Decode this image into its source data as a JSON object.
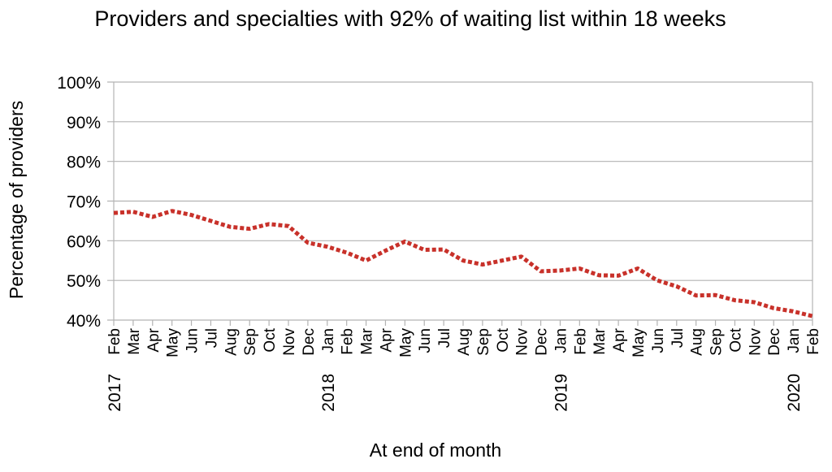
{
  "chart_data": {
    "type": "line",
    "title": "Providers and specialties with 92% of waiting list within 18 weeks",
    "xlabel": "At end of month",
    "ylabel": "Percentage  of  providers",
    "ylim": [
      40,
      100
    ],
    "y_ticks": [
      "40%",
      "50%",
      "60%",
      "70%",
      "80%",
      "90%",
      "100%"
    ],
    "y_tick_values": [
      40,
      50,
      60,
      70,
      80,
      90,
      100
    ],
    "grid": true,
    "legend": "none",
    "categories": [
      "Feb",
      "Mar",
      "Apr",
      "May",
      "Jun",
      "Jul",
      "Aug",
      "Sep",
      "Oct",
      "Nov",
      "Dec",
      "Jan",
      "Feb",
      "Mar",
      "Apr",
      "May",
      "Jun",
      "Jul",
      "Aug",
      "Sep",
      "Oct",
      "Nov",
      "Dec",
      "Jan",
      "Feb",
      "Mar",
      "Apr",
      "May",
      "Jun",
      "Jul",
      "Aug",
      "Sep",
      "Oct",
      "Nov",
      "Dec",
      "Jan",
      "Feb"
    ],
    "year_labels": [
      {
        "index": 0,
        "label": "2017"
      },
      {
        "index": 11,
        "label": "2018"
      },
      {
        "index": 23,
        "label": "2019"
      },
      {
        "index": 35,
        "label": "2020"
      }
    ],
    "series": [
      {
        "color": "#c8312a",
        "line_style": "dotted",
        "values": [
          67,
          67.3,
          66,
          67.5,
          66.5,
          65,
          63.5,
          63,
          64.2,
          63.7,
          59.5,
          58.5,
          57,
          55,
          57.5,
          59.8,
          57.7,
          57.8,
          55,
          54,
          55,
          56,
          52.3,
          52.5,
          53,
          51.3,
          51.2,
          53,
          50,
          48.5,
          46.2,
          46.3,
          45,
          44.5,
          43,
          42.2,
          41
        ]
      }
    ]
  }
}
